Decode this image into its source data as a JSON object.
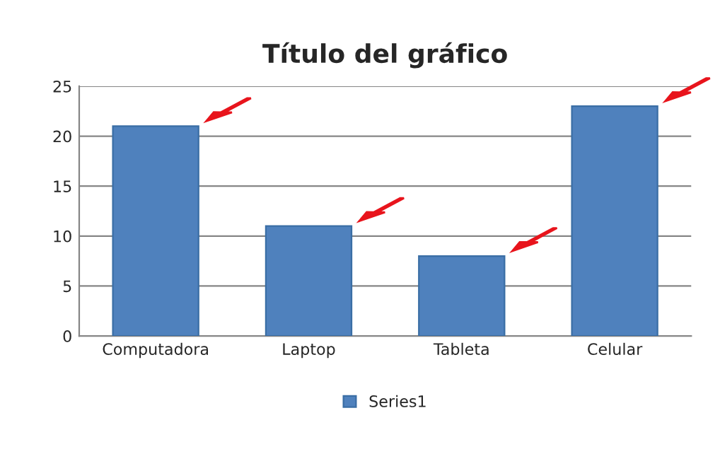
{
  "chart_data": {
    "type": "bar",
    "title": "Título del gráfico",
    "categories": [
      "Computadora",
      "Laptop",
      "Tableta",
      "Celular"
    ],
    "series": [
      {
        "name": "Series1",
        "color": "#4f81bd",
        "values": [
          21,
          11,
          8,
          23
        ]
      }
    ],
    "ylim": [
      0,
      25
    ],
    "yticks": [
      0,
      5,
      10,
      15,
      20,
      25
    ],
    "grid": "y",
    "legend": "bottom"
  }
}
